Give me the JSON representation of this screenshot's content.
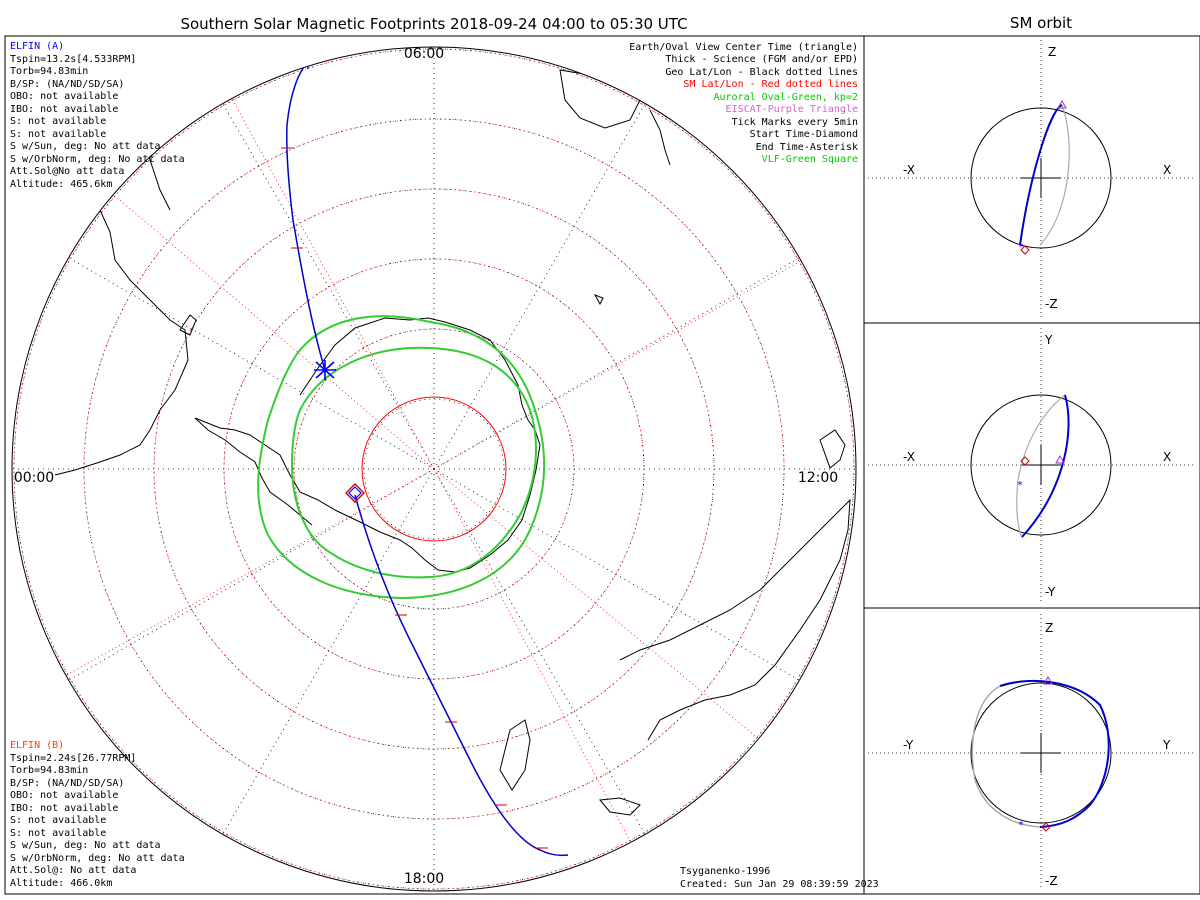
{
  "title": "Southern Solar Magnetic Footprints 2018-09-24 04:00 to 05:30 UTC",
  "sm_orbit_title": "SM orbit",
  "clock_labels": {
    "top": "06:00",
    "right": "12:00",
    "bottom": "18:00",
    "left": "00:00"
  },
  "elfin_a": {
    "header": "ELFIN (A)",
    "header_color": "#0000ff",
    "lines": [
      "Tspin=13.2s[4.533RPM]",
      "Torb=94.83min",
      "B/SP: (NA/ND/SD/SA)",
      "OBO: not available",
      "IBO: not available",
      "S: not available",
      "S: not available",
      "S w/Sun, deg: No att data",
      "S w/OrbNorm, deg: No att data",
      "Att.Sol@No att data",
      "Altitude: 465.6km"
    ]
  },
  "elfin_b": {
    "header": "ELFIN (B)",
    "header_color": "#ff4500",
    "lines": [
      "Tspin=2.24s[26.77RPM]",
      "Torb=94.83min",
      "B/SP: (NA/ND/SD/SA)",
      "OBO: not available",
      "IBO: not available",
      "S: not available",
      "S: not available",
      "S w/Sun, deg: No att data",
      "S w/OrbNorm, deg: No att data",
      "Att.Sol@: No att data",
      "Altitude: 466.0km"
    ]
  },
  "legend": [
    {
      "text": "Earth/Oval View Center Time (triangle)",
      "color": "#000000"
    },
    {
      "text": "Thick - Science (FGM and/or EPD)",
      "color": "#000000"
    },
    {
      "text": "Geo Lat/Lon - Black dotted lines",
      "color": "#000000"
    },
    {
      "text": "SM Lat/Lon - Red dotted lines",
      "color": "#ff0000"
    },
    {
      "text": "Auroral Oval-Green, kp=2",
      "color": "#00cc00"
    },
    {
      "text": "EISCAT-Purple Triangle",
      "color": "#cc66cc"
    },
    {
      "text": "Tick Marks every 5min",
      "color": "#000000"
    },
    {
      "text": "Start Time-Diamond",
      "color": "#000000"
    },
    {
      "text": "End Time-Asterisk",
      "color": "#000000"
    },
    {
      "text": "VLF-Green Square",
      "color": "#00cc00"
    }
  ],
  "footer": {
    "model": "Tsyganenko-1996",
    "created": "Created: Sun Jan 29 08:39:59 2023"
  },
  "panels": [
    {
      "top": "Z",
      "bottom": "-Z",
      "left": "-X",
      "right": "X"
    },
    {
      "top": "Y",
      "bottom": "-Y",
      "left": "-X",
      "right": "X"
    },
    {
      "top": "Z",
      "bottom": "-Z",
      "left": "-Y",
      "right": "Y"
    }
  ],
  "colors": {
    "track": "#0000cc",
    "sm_grid": "#ff0000",
    "oval": "#33cc33",
    "marker": "#0000ff",
    "diamond": "#cc0000",
    "eiscat": "#9933cc",
    "orbit_back": "#aaaaaa"
  }
}
